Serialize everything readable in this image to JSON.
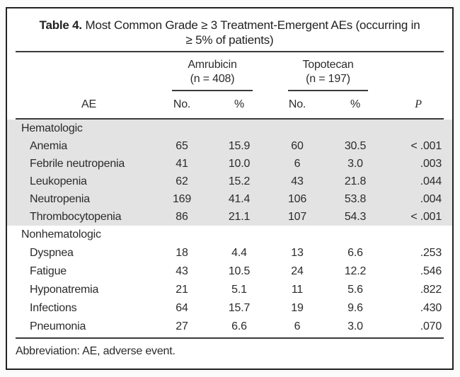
{
  "table": {
    "title": {
      "label": "Table 4.",
      "line1": "Most Common Grade ≥ 3 Treatment-Emergent AEs (occurring in",
      "line2": "≥ 5% of patients)"
    },
    "columns": {
      "ae": "AE",
      "groups": [
        {
          "name": "Amrubicin",
          "n": "(n = 408)"
        },
        {
          "name": "Topotecan",
          "n": "(n = 197)"
        }
      ],
      "sub": [
        "No.",
        "%",
        "No.",
        "%"
      ],
      "p": "P"
    },
    "sections": [
      {
        "header": "Hematologic",
        "shaded": true,
        "rows": [
          {
            "ae": "Anemia",
            "values": [
              "65",
              "15.9",
              "60",
              "30.5",
              "< .001"
            ]
          },
          {
            "ae": "Febrile neutropenia",
            "values": [
              "41",
              "10.0",
              "6",
              "3.0",
              ".003"
            ]
          },
          {
            "ae": "Leukopenia",
            "values": [
              "62",
              "15.2",
              "43",
              "21.8",
              ".044"
            ]
          },
          {
            "ae": "Neutropenia",
            "values": [
              "169",
              "41.4",
              "106",
              "53.8",
              ".004"
            ]
          },
          {
            "ae": "Thrombocytopenia",
            "values": [
              "86",
              "21.1",
              "107",
              "54.3",
              "< .001"
            ]
          }
        ]
      },
      {
        "header": "Nonhematologic",
        "shaded": false,
        "rows": [
          {
            "ae": "Dyspnea",
            "values": [
              "18",
              "4.4",
              "13",
              "6.6",
              ".253"
            ]
          },
          {
            "ae": "Fatigue",
            "values": [
              "43",
              "10.5",
              "24",
              "12.2",
              ".546"
            ]
          },
          {
            "ae": "Hyponatremia",
            "values": [
              "21",
              "5.1",
              "11",
              "5.6",
              ".822"
            ]
          },
          {
            "ae": "Infections",
            "values": [
              "64",
              "15.7",
              "19",
              "9.6",
              ".430"
            ]
          },
          {
            "ae": "Pneumonia",
            "values": [
              "27",
              "6.6",
              "6",
              "3.0",
              ".070"
            ]
          }
        ]
      }
    ],
    "footnote": "Abbreviation: AE, adverse event.",
    "colors": {
      "shade": "#e3e3e3",
      "rule": "#3a3a3a",
      "text": "#2b2b2b",
      "frame_border": "#222222",
      "background": "#ffffff"
    }
  }
}
